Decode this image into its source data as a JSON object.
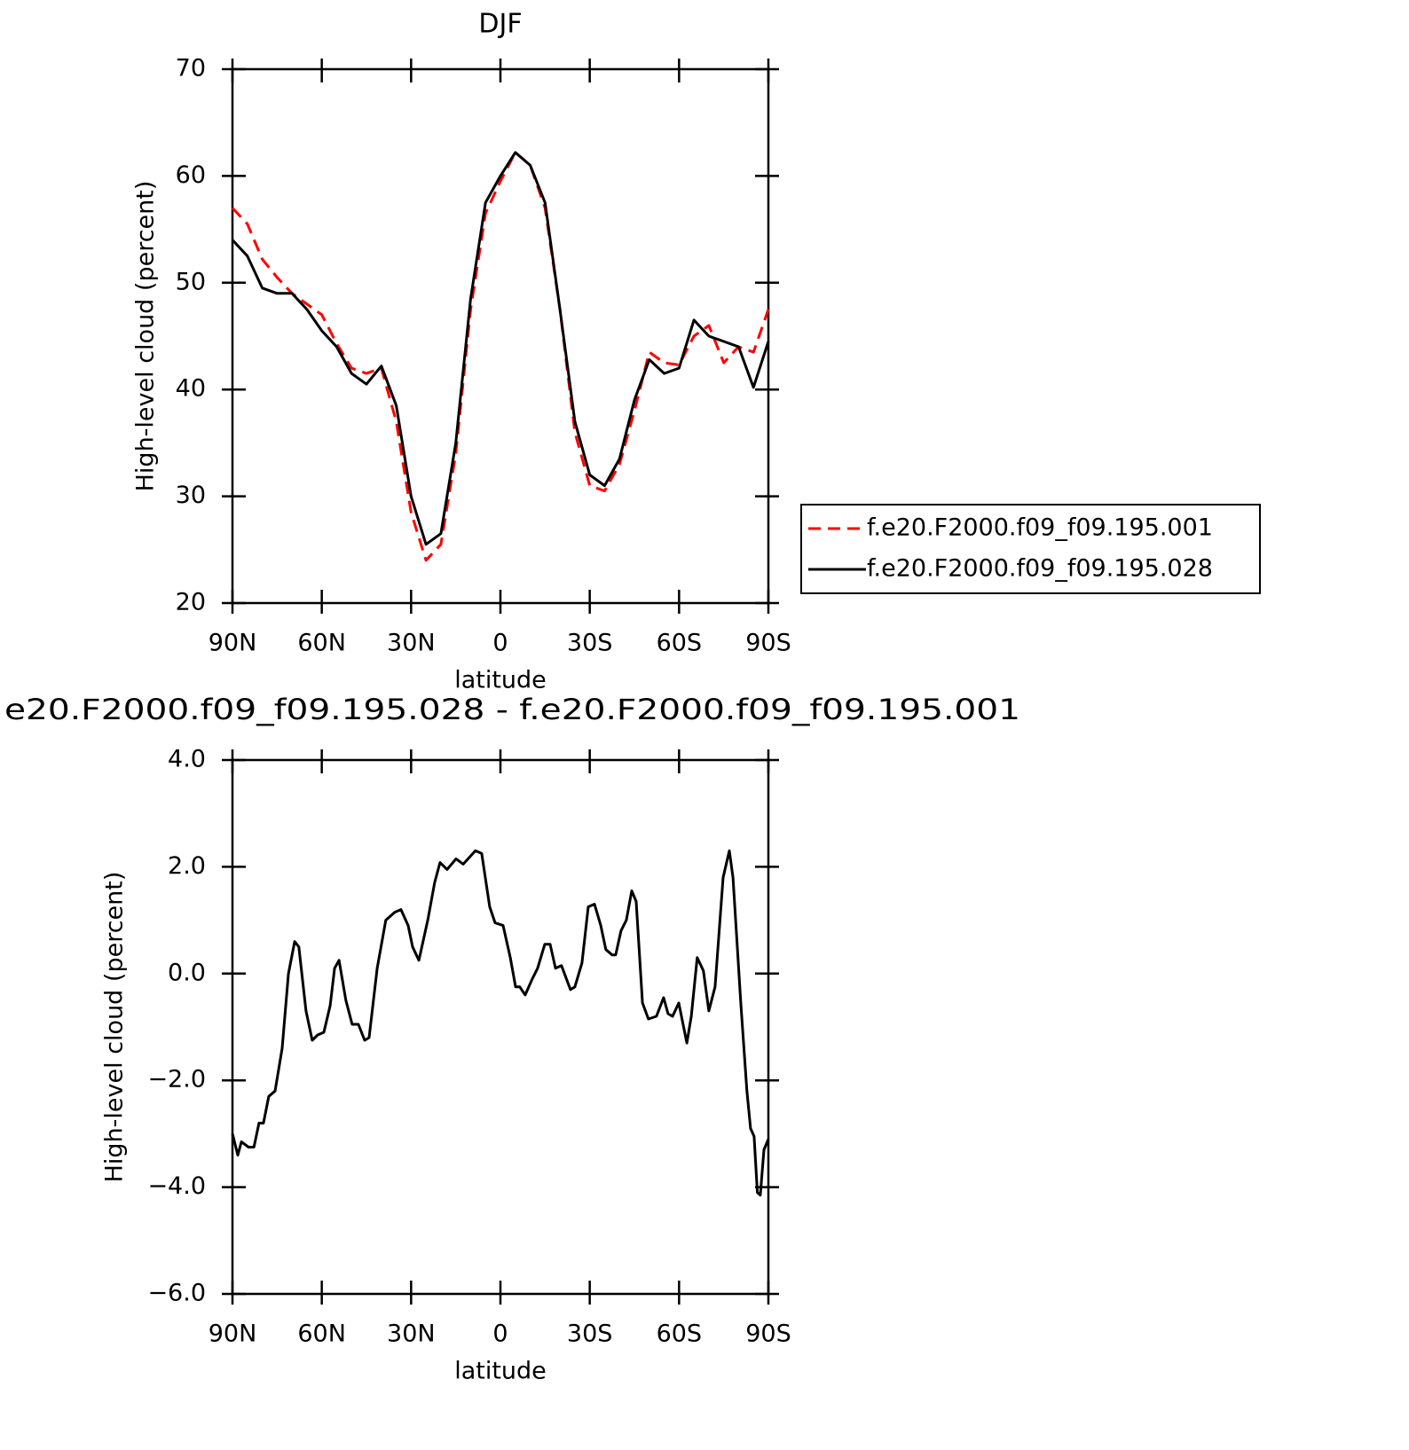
{
  "chart_data": [
    {
      "type": "line",
      "title": "DJF",
      "xlabel": "latitude",
      "ylabel": "High-level cloud (percent)",
      "x": [
        90,
        85,
        80,
        75,
        70,
        65,
        60,
        55,
        50,
        45,
        40,
        35,
        30,
        25,
        20,
        15,
        10,
        5,
        0,
        -5,
        -10,
        -15,
        -20,
        -25,
        -30,
        -35,
        -40,
        -45,
        -50,
        -55,
        -60,
        -65,
        -70,
        -75,
        -80,
        -85,
        -90
      ],
      "series": [
        {
          "name": "f.e20.F2000.f09_f09.195.001",
          "color": "#ff0000",
          "dash": true,
          "values": [
            57,
            55.5,
            52.2,
            50.5,
            49,
            48,
            47,
            44.3,
            42,
            41.5,
            42,
            37,
            28.5,
            24,
            25.5,
            34,
            47.5,
            56.5,
            59.5,
            62.2,
            61,
            57,
            47.5,
            36,
            31,
            30.5,
            33,
            38,
            43.5,
            42.5,
            42.3,
            45,
            46,
            42.5,
            44,
            43.5,
            47.5
          ]
        },
        {
          "name": "f.e20.F2000.f09_f09.195.028",
          "color": "#000000",
          "dash": false,
          "values": [
            54,
            52.5,
            49.5,
            49,
            49,
            47.5,
            45.5,
            44,
            41.5,
            40.5,
            42.2,
            38.5,
            30,
            25.5,
            26.5,
            35,
            48.5,
            57.5,
            60,
            62.2,
            61,
            57.5,
            47.5,
            37,
            32,
            31,
            33.5,
            39,
            42.8,
            41.5,
            42,
            46.5,
            45,
            44.5,
            44,
            40.2,
            44.5
          ]
        }
      ],
      "xlim": [
        90,
        -90
      ],
      "xticks": [
        {
          "value": 90,
          "label": "90N"
        },
        {
          "value": 60,
          "label": "60N"
        },
        {
          "value": 30,
          "label": "30N"
        },
        0,
        {
          "value": -30,
          "label": "30S"
        },
        {
          "value": -60,
          "label": "60S"
        },
        {
          "value": -90,
          "label": "90S"
        }
      ],
      "ylim": [
        20,
        70
      ],
      "yticks": [
        20,
        30,
        40,
        50,
        60,
        70
      ],
      "legend": "right"
    },
    {
      "type": "line",
      "title": "e20.F2000.f09_f09.195.028 - f.e20.F2000.f09_f09.195.001",
      "xlabel": "latitude",
      "ylabel": "High-level cloud (percent)",
      "x": [
        90,
        88.2,
        87,
        84.6,
        82.8,
        81.1,
        79.6,
        77.8,
        75.7,
        73.3,
        71.2,
        69.1,
        67.7,
        65.3,
        63.2,
        61.4,
        59.3,
        57.2,
        55.7,
        54.2,
        51.9,
        49.8,
        47.7,
        45.6,
        44.1,
        41.4,
        38.5,
        35.5,
        33.4,
        31,
        29.5,
        27.4,
        24.4,
        22.1,
        20.3,
        17.9,
        14.9,
        12.5,
        8.4,
        6.3,
        3.6,
        1.8,
        -0.9,
        -3.3,
        -5.1,
        -6.5,
        -8.3,
        -10.7,
        -12.5,
        -14.9,
        -16.7,
        -18.5,
        -20.5,
        -23.5,
        -25,
        -27.4,
        -29.5,
        -31.6,
        -33.7,
        -35.4,
        -37.5,
        -38.7,
        -40.5,
        -42.3,
        -44.1,
        -45.6,
        -47.7,
        -49.7,
        -52.4,
        -54.8,
        -56.3,
        -57.8,
        -59.9,
        -62.6,
        -64.1,
        -66.1,
        -68.2,
        -70,
        -72.1,
        -74.8,
        -76.9,
        -78.1,
        -80.8,
        -82.8,
        -84,
        -85.2,
        -86.3,
        -87.3,
        -88.5,
        -90
      ],
      "values": [
        -3,
        -3.4,
        -3.15,
        -3.25,
        -3.25,
        -2.8,
        -2.8,
        -2.3,
        -2.2,
        -1.4,
        0,
        0.6,
        0.5,
        -0.7,
        -1.25,
        -1.15,
        -1.1,
        -0.6,
        0.1,
        0.25,
        -0.5,
        -0.95,
        -0.95,
        -1.25,
        -1.2,
        0.1,
        1,
        1.15,
        1.2,
        0.9,
        0.5,
        0.25,
        1,
        1.7,
        2.08,
        1.95,
        2.15,
        2.05,
        2.3,
        2.25,
        1.25,
        0.95,
        0.9,
        0.3,
        -0.25,
        -0.25,
        -0.4,
        -0.1,
        0.1,
        0.55,
        0.55,
        0.1,
        0.15,
        -0.3,
        -0.25,
        0.2,
        1.25,
        1.3,
        0.9,
        0.45,
        0.35,
        0.35,
        0.8,
        1,
        1.55,
        1.35,
        -0.55,
        -0.85,
        -0.8,
        -0.45,
        -0.75,
        -0.8,
        -0.55,
        -1.3,
        -0.8,
        0.3,
        0.05,
        -0.7,
        -0.25,
        1.8,
        2.3,
        1.8,
        -0.6,
        -2.2,
        -2.9,
        -3.05,
        -4.1,
        -4.15,
        -3.3,
        -3.1
      ],
      "color": "#000000",
      "xlim": [
        90,
        -90
      ],
      "xticks": [
        {
          "value": 90,
          "label": "90N"
        },
        {
          "value": 60,
          "label": "60N"
        },
        {
          "value": 30,
          "label": "30N"
        },
        0,
        {
          "value": -30,
          "label": "30S"
        },
        {
          "value": -60,
          "label": "60S"
        },
        {
          "value": -90,
          "label": "90S"
        }
      ],
      "ylim": [
        -6,
        4
      ],
      "yticks": [
        {
          "value": -6,
          "label": "−6.0"
        },
        {
          "value": -4,
          "label": "−4.0"
        },
        {
          "value": -2,
          "label": "−2.0"
        },
        {
          "value": 0,
          "label": "0.0"
        },
        {
          "value": 2,
          "label": "2.0"
        },
        {
          "value": 4,
          "label": "4.0"
        }
      ]
    }
  ]
}
